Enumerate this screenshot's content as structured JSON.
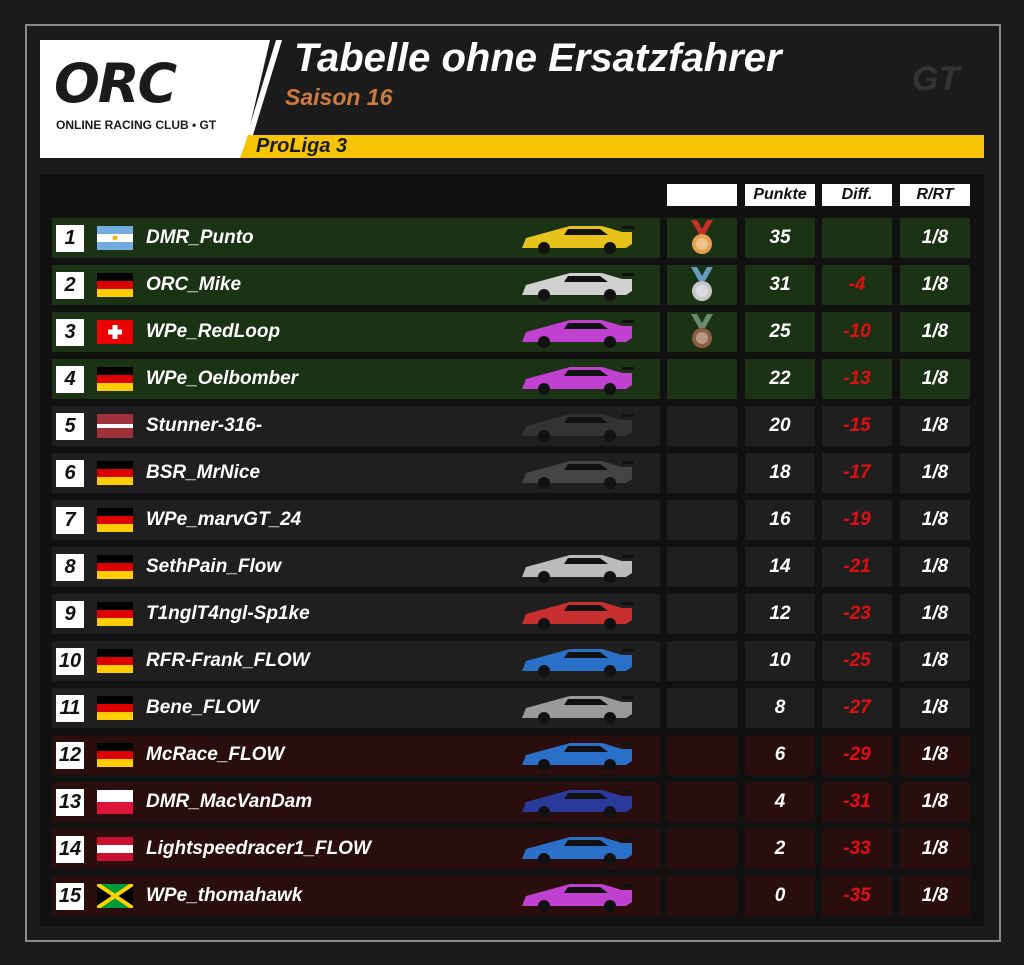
{
  "header": {
    "title": "Tabelle ohne Ersatzfahrer",
    "season": "Saison 16",
    "league": "ProLiga 3",
    "logo_text": "ORC",
    "logo_subtitle": "ONLINE RACING CLUB • GT",
    "watermark": "GT"
  },
  "columns": {
    "medal": "",
    "points": "Punkte",
    "diff": "Diff.",
    "rrt": "R/RT"
  },
  "colors": {
    "top": "#1b3214",
    "mid": "#1f1f1f",
    "bottom": "#2a0e0e",
    "accent": "#f6c405",
    "diff": "#e01010"
  },
  "rows": [
    {
      "rank": "1",
      "flag": "AR",
      "name": "DMR_Punto",
      "car": "#e7c21a",
      "medal": "gold",
      "points": "35",
      "diff": "",
      "rrt": "1/8",
      "zone": "top"
    },
    {
      "rank": "2",
      "flag": "DE",
      "name": "ORC_Mike",
      "car": "#d0d0d0",
      "medal": "silver",
      "points": "31",
      "diff": "-4",
      "rrt": "1/8",
      "zone": "top"
    },
    {
      "rank": "3",
      "flag": "CH",
      "name": "WPe_RedLoop",
      "car": "#c040d0",
      "medal": "bronze",
      "points": "25",
      "diff": "-10",
      "rrt": "1/8",
      "zone": "top"
    },
    {
      "rank": "4",
      "flag": "DE",
      "name": "WPe_Oelbomber",
      "car": "#c040d0",
      "medal": "",
      "points": "22",
      "diff": "-13",
      "rrt": "1/8",
      "zone": "top"
    },
    {
      "rank": "5",
      "flag": "LV",
      "name": "Stunner-316-",
      "car": "#333333",
      "medal": "",
      "points": "20",
      "diff": "-15",
      "rrt": "1/8",
      "zone": "mid"
    },
    {
      "rank": "6",
      "flag": "DE",
      "name": "BSR_MrNice",
      "car": "#444444",
      "medal": "",
      "points": "18",
      "diff": "-17",
      "rrt": "1/8",
      "zone": "mid"
    },
    {
      "rank": "7",
      "flag": "DE",
      "name": "WPe_marvGT_24",
      "car": "",
      "medal": "",
      "points": "16",
      "diff": "-19",
      "rrt": "1/8",
      "zone": "mid"
    },
    {
      "rank": "8",
      "flag": "DE",
      "name": "SethPain_Flow",
      "car": "#bbbbbb",
      "medal": "",
      "points": "14",
      "diff": "-21",
      "rrt": "1/8",
      "zone": "mid"
    },
    {
      "rank": "9",
      "flag": "DE",
      "name": "T1nglT4ngl-Sp1ke",
      "car": "#c83030",
      "medal": "",
      "points": "12",
      "diff": "-23",
      "rrt": "1/8",
      "zone": "mid"
    },
    {
      "rank": "10",
      "flag": "DE",
      "name": "RFR-Frank_FLOW",
      "car": "#2a70c8",
      "medal": "",
      "points": "10",
      "diff": "-25",
      "rrt": "1/8",
      "zone": "mid"
    },
    {
      "rank": "11",
      "flag": "DE",
      "name": "Bene_FLOW",
      "car": "#9a9a9a",
      "medal": "",
      "points": "8",
      "diff": "-27",
      "rrt": "1/8",
      "zone": "mid"
    },
    {
      "rank": "12",
      "flag": "DE",
      "name": "McRace_FLOW",
      "car": "#2a70c8",
      "medal": "",
      "points": "6",
      "diff": "-29",
      "rrt": "1/8",
      "zone": "bottom"
    },
    {
      "rank": "13",
      "flag": "PL",
      "name": "DMR_MacVanDam",
      "car": "#2a3a9a",
      "medal": "",
      "points": "4",
      "diff": "-31",
      "rrt": "1/8",
      "zone": "bottom"
    },
    {
      "rank": "14",
      "flag": "AT",
      "name": "Lightspeedracer1_FLOW",
      "car": "#2a70c8",
      "medal": "",
      "points": "2",
      "diff": "-33",
      "rrt": "1/8",
      "zone": "bottom"
    },
    {
      "rank": "15",
      "flag": "JM",
      "name": "WPe_thomahawk",
      "car": "#c040d0",
      "medal": "",
      "points": "0",
      "diff": "-35",
      "rrt": "1/8",
      "zone": "bottom"
    }
  ]
}
